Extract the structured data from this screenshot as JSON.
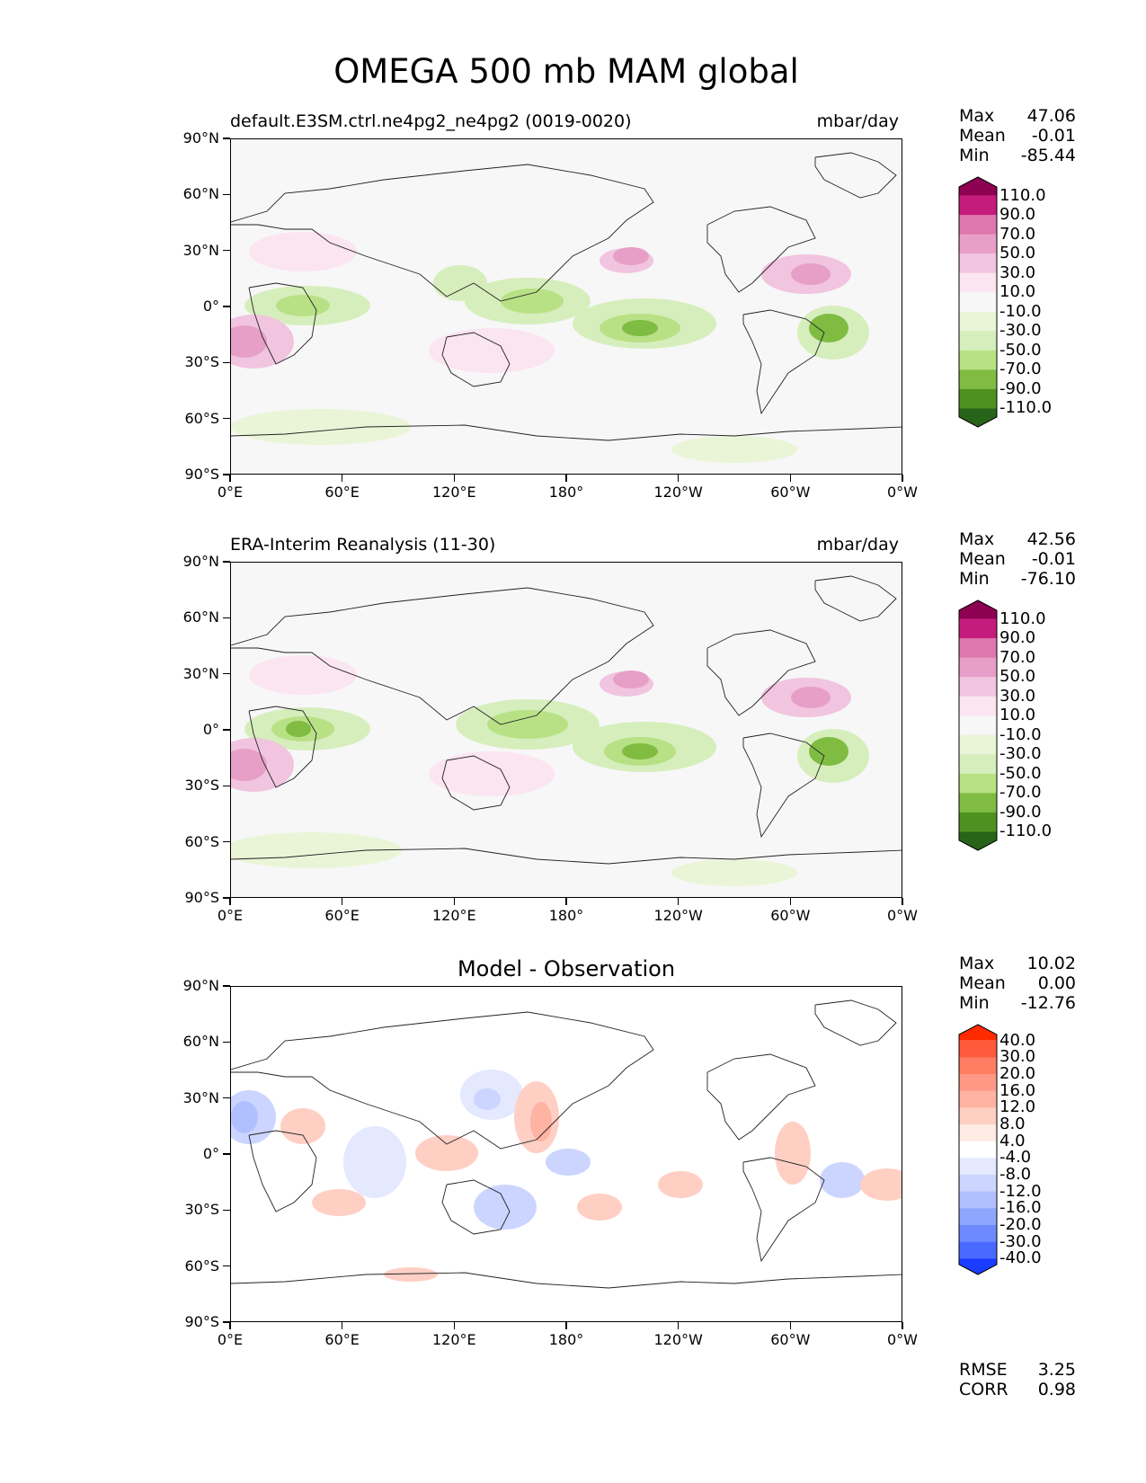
{
  "title": "OMEGA 500 mb MAM global",
  "axes": {
    "y_ticks": [
      "90°N",
      "60°N",
      "30°N",
      "0°",
      "30°S",
      "60°S",
      "90°S"
    ],
    "x_ticks": [
      "0°E",
      "60°E",
      "120°E",
      "180°",
      "120°W",
      "60°W",
      "0°W"
    ]
  },
  "panels": [
    {
      "left_title": "default.E3SM.ctrl.ne4pg2_ne4pg2 (0019-0020)",
      "right_title": "mbar/day",
      "center_title": "",
      "stats": [
        {
          "label": "Max",
          "value": "47.06"
        },
        {
          "label": "Mean",
          "value": "-0.01"
        },
        {
          "label": "Min",
          "value": "-85.44"
        }
      ],
      "colorbar_labels": [
        "110.0",
        "90.0",
        "70.0",
        "50.0",
        "30.0",
        "10.0",
        "-10.0",
        "-30.0",
        "-50.0",
        "-70.0",
        "-90.0",
        "-110.0"
      ],
      "colorbar_colors": [
        "#8e0152",
        "#c51b7d",
        "#de77ae",
        "#e79fc8",
        "#f1c4df",
        "#fbe5f0",
        "#f7f7f7",
        "#eaf5d7",
        "#d6eebc",
        "#b8e186",
        "#7fbc41",
        "#4d9221",
        "#276419"
      ],
      "metrics": []
    },
    {
      "left_title": "ERA-Interim Reanalysis (11-30)",
      "right_title": "mbar/day",
      "center_title": "",
      "stats": [
        {
          "label": "Max",
          "value": "42.56"
        },
        {
          "label": "Mean",
          "value": "-0.01"
        },
        {
          "label": "Min",
          "value": "-76.10"
        }
      ],
      "colorbar_labels": [
        "110.0",
        "90.0",
        "70.0",
        "50.0",
        "30.0",
        "10.0",
        "-10.0",
        "-30.0",
        "-50.0",
        "-70.0",
        "-90.0",
        "-110.0"
      ],
      "colorbar_colors": [
        "#8e0152",
        "#c51b7d",
        "#de77ae",
        "#e79fc8",
        "#f1c4df",
        "#fbe5f0",
        "#f7f7f7",
        "#eaf5d7",
        "#d6eebc",
        "#b8e186",
        "#7fbc41",
        "#4d9221",
        "#276419"
      ],
      "metrics": []
    },
    {
      "left_title": "",
      "right_title": "",
      "center_title": "Model - Observation",
      "stats": [
        {
          "label": "Max",
          "value": "10.02"
        },
        {
          "label": "Mean",
          "value": "0.00"
        },
        {
          "label": "Min",
          "value": "-12.76"
        }
      ],
      "colorbar_labels": [
        "40.0",
        "30.0",
        "20.0",
        "16.0",
        "12.0",
        "8.0",
        "4.0",
        "-4.0",
        "-8.0",
        "-12.0",
        "-16.0",
        "-20.0",
        "-30.0",
        "-40.0"
      ],
      "colorbar_colors": [
        "#ff2a00",
        "#ff5a3c",
        "#ff7d63",
        "#ff9985",
        "#ffb3a3",
        "#ffcfc4",
        "#ffeae4",
        "#ffffff",
        "#e4e9ff",
        "#cbd5ff",
        "#b0c0ff",
        "#8fa6ff",
        "#6d8bff",
        "#4a6aff",
        "#1a3dff"
      ],
      "metrics": [
        {
          "label": "RMSE",
          "value": "3.25"
        },
        {
          "label": "CORR",
          "value": "0.98"
        }
      ]
    }
  ]
}
